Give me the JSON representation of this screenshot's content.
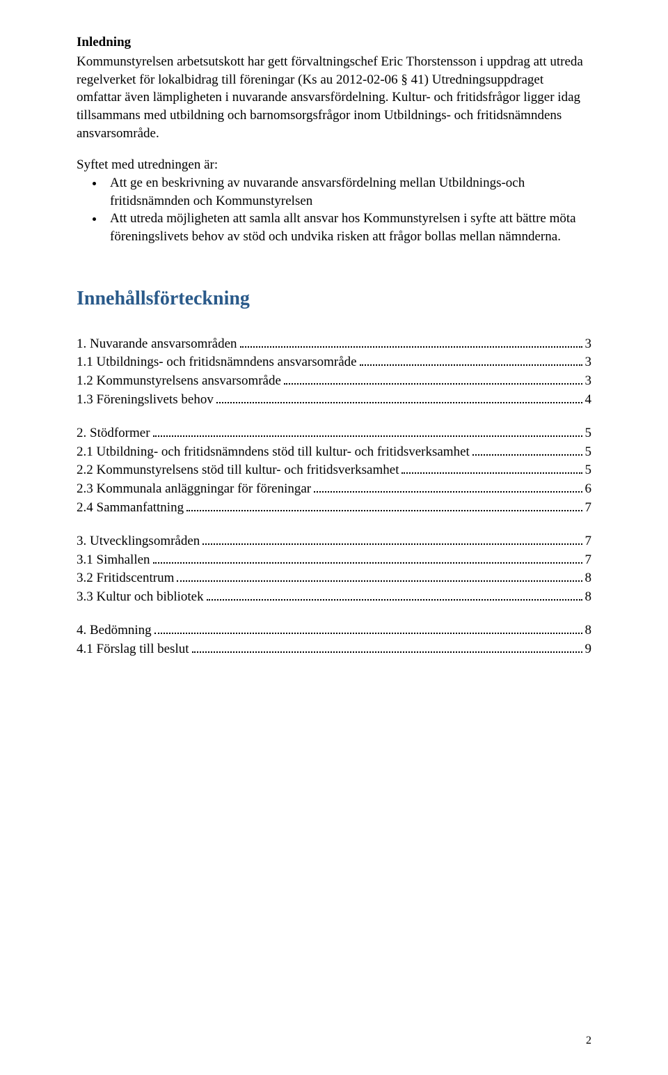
{
  "colors": {
    "heading": "#2a5a8a",
    "text": "#000000",
    "background": "#ffffff"
  },
  "intro": {
    "heading": "Inledning",
    "paragraph1": "Kommunstyrelsen arbetsutskott har gett förvaltningschef Eric Thorstensson i uppdrag att utreda regelverket för lokalbidrag till föreningar (Ks au 2012-02-06 § 41) Utredningsuppdraget omfattar även lämpligheten i nuvarande ansvarsfördelning. Kultur- och fritidsfrågor ligger idag tillsammans med utbildning och barnomsorgsfrågor inom Utbildnings- och fritidsnämndens ansvarsområde.",
    "purposeIntro": "Syftet med utredningen är:",
    "bullets": [
      "Att ge en beskrivning av nuvarande ansvarsfördelning mellan Utbildnings-och fritidsnämnden och Kommunstyrelsen",
      "Att utreda möjligheten att samla allt ansvar hos Kommunstyrelsen i syfte att bättre möta föreningslivets behov av stöd och undvika risken att frågor bollas mellan nämnderna."
    ]
  },
  "toc": {
    "heading": "Innehållsförteckning",
    "groups": [
      [
        {
          "label": "1. Nuvarande ansvarsområden",
          "page": "3"
        },
        {
          "label": "1.1 Utbildnings- och fritidsnämndens ansvarsområde",
          "page": "3"
        },
        {
          "label": "1.2 Kommunstyrelsens ansvarsområde",
          "page": "3"
        },
        {
          "label": "1.3 Föreningslivets behov",
          "page": "4"
        }
      ],
      [
        {
          "label": "2. Stödformer",
          "page": "5"
        },
        {
          "label": "2.1 Utbildning- och fritidsnämndens stöd till kultur- och fritidsverksamhet",
          "page": "5"
        },
        {
          "label": "2.2 Kommunstyrelsens stöd till kultur- och fritidsverksamhet",
          "page": "5"
        },
        {
          "label": "2.3 Kommunala anläggningar för föreningar",
          "page": "6"
        },
        {
          "label": "2.4 Sammanfattning",
          "page": "7"
        }
      ],
      [
        {
          "label": "3. Utvecklingsområden",
          "page": "7"
        },
        {
          "label": "3.1 Simhallen",
          "page": "7"
        },
        {
          "label": "3.2 Fritidscentrum",
          "page": "8"
        },
        {
          "label": "3.3 Kultur och bibliotek",
          "page": "8"
        }
      ],
      [
        {
          "label": "4. Bedömning",
          "page": "8"
        },
        {
          "label": "4.1 Förslag till beslut",
          "page": "9"
        }
      ]
    ]
  },
  "pageNumber": "2"
}
